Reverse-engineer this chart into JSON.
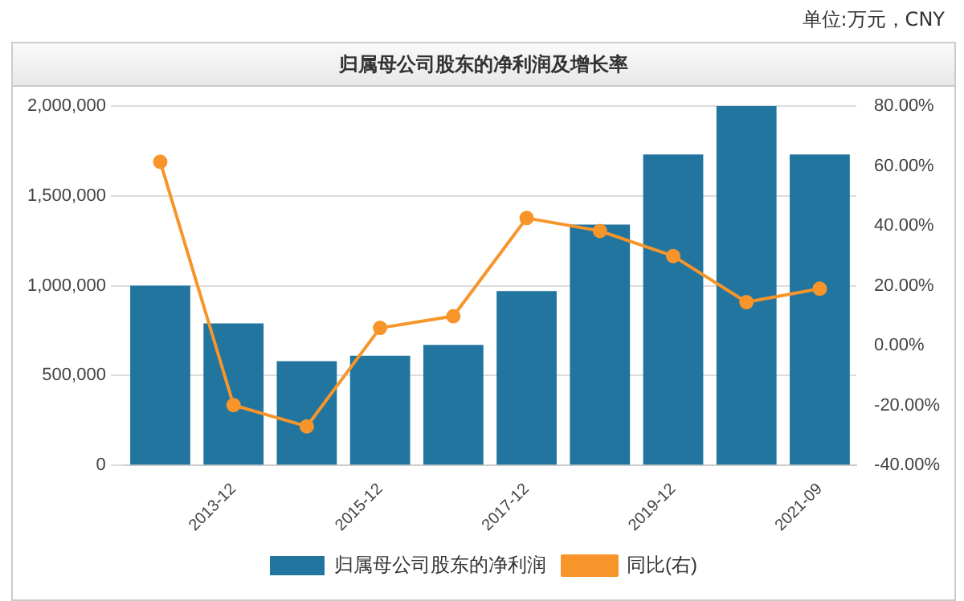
{
  "chart_data": {
    "type": "bar",
    "title": "归属母公司股东的净利润及增长率",
    "annotations": [
      "单位:万元，CNY"
    ],
    "categories": [
      null,
      "2013-12",
      null,
      "2015-12",
      null,
      "2017-12",
      null,
      "2019-12",
      null,
      "2021-09"
    ],
    "series": [
      {
        "name": "归属母公司股东的净利润",
        "color": "#21759f",
        "values": [
          1000000,
          790000,
          580000,
          610000,
          670000,
          970000,
          1340000,
          1730000,
          2000000,
          1730000
        ]
      },
      {
        "name": "同比(右)",
        "type": "line",
        "axis": "y2",
        "color": "#f7952b",
        "values": [
          61.4,
          -19.9,
          -27,
          5.9,
          9.8,
          42.6,
          38.3,
          29.9,
          14.5,
          19.0
        ]
      }
    ],
    "ylim": [
      0,
      2000000
    ],
    "yticks": [
      {
        "value": 0,
        "label": "0"
      },
      {
        "value": 500000,
        "label": "500,000"
      },
      {
        "value": 1000000,
        "label": "1,000,000"
      },
      {
        "value": 1500000,
        "label": "1,500,000"
      },
      {
        "value": 2000000,
        "label": "2,000,000"
      }
    ],
    "y2lim": [
      -40,
      80
    ],
    "y2ticks": [
      {
        "value": -40,
        "label": "-40.00%"
      },
      {
        "value": -20,
        "label": "-20.00%"
      },
      {
        "value": 0,
        "label": "0.00%"
      },
      {
        "value": 20,
        "label": "20.00%"
      },
      {
        "value": 40,
        "label": "40.00%"
      },
      {
        "value": 60,
        "label": "60.00%"
      },
      {
        "value": 80,
        "label": "80.00%"
      }
    ],
    "grid": "y",
    "legend": "bottom",
    "marker": "circle"
  }
}
